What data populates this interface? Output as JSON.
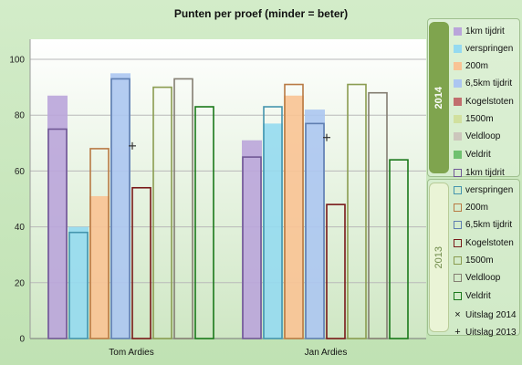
{
  "chart_data": {
    "type": "bar",
    "title": "Punten per proef (minder = beter)",
    "categories": [
      "Tom Ardies",
      "Jan Ardies"
    ],
    "ylim": [
      0,
      100
    ],
    "yticks": [
      0,
      20,
      40,
      60,
      80,
      100
    ],
    "grid": true,
    "legend_position": "right",
    "disciplines": [
      "1km tijdrit",
      "verspringen",
      "200m",
      "6,5km tijdrit",
      "Kogelstoten",
      "1500m",
      "Veldloop",
      "Veldrit"
    ],
    "colors": [
      "#9575c6",
      "#5cc6e8",
      "#f5a35a",
      "#7fa8ea",
      "#a02020",
      "#b8d06a",
      "#b0a898",
      "#22a022"
    ],
    "series_2014": [
      {
        "name": "1km tijdrit",
        "values": [
          87,
          71
        ]
      },
      {
        "name": "verspringen",
        "values": [
          40,
          77
        ]
      },
      {
        "name": "200m",
        "values": [
          51,
          87
        ]
      },
      {
        "name": "6,5km tijdrit",
        "values": [
          95,
          82
        ]
      },
      {
        "name": "Kogelstoten",
        "values": [
          0,
          0
        ]
      },
      {
        "name": "1500m",
        "values": [
          0,
          0
        ]
      },
      {
        "name": "Veldloop",
        "values": [
          0,
          0
        ]
      },
      {
        "name": "Veldrit",
        "values": [
          0,
          0
        ]
      }
    ],
    "series_2013": [
      {
        "name": "1km tijdrit",
        "values": [
          75,
          65
        ]
      },
      {
        "name": "verspringen",
        "values": [
          38,
          83
        ]
      },
      {
        "name": "200m",
        "values": [
          68,
          91
        ]
      },
      {
        "name": "6,5km tijdrit",
        "values": [
          93,
          77
        ]
      },
      {
        "name": "Kogelstoten",
        "values": [
          54,
          48
        ]
      },
      {
        "name": "1500m",
        "values": [
          90,
          91
        ]
      },
      {
        "name": "Veldloop",
        "values": [
          93,
          88
        ]
      },
      {
        "name": "Veldrit",
        "values": [
          83,
          64
        ]
      }
    ],
    "uitslag_2013": [
      69,
      72
    ],
    "legend": {
      "group_2014": "2014",
      "group_2013": "2013",
      "uitslag_2014": "Uitslag 2014",
      "uitslag_2013": "Uitslag 2013"
    }
  }
}
